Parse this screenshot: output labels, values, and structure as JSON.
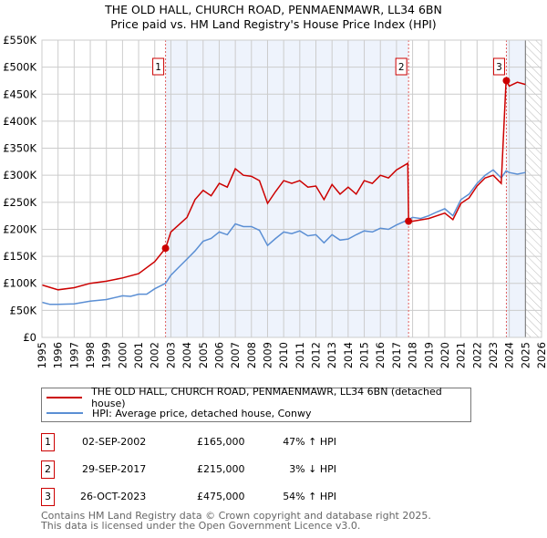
{
  "chart_data": {
    "type": "line",
    "title": "THE OLD HALL, CHURCH ROAD, PENMAENMAWR, LL34 6BN",
    "subtitle": "Price paid vs. HM Land Registry's House Price Index (HPI)",
    "xlim": [
      1995,
      2026
    ],
    "ylim": [
      0,
      550000
    ],
    "x_ticks": [
      "1995",
      "1996",
      "1997",
      "1998",
      "1999",
      "2000",
      "2001",
      "2002",
      "2003",
      "2004",
      "2005",
      "2006",
      "2007",
      "2008",
      "2009",
      "2010",
      "2011",
      "2012",
      "2013",
      "2014",
      "2015",
      "2016",
      "2017",
      "2018",
      "2019",
      "2020",
      "2021",
      "2022",
      "2023",
      "2024",
      "2025",
      "2026"
    ],
    "y_ticks": [
      {
        "v": 0,
        "label": "£0"
      },
      {
        "v": 50000,
        "label": "£50K"
      },
      {
        "v": 100000,
        "label": "£100K"
      },
      {
        "v": 150000,
        "label": "£150K"
      },
      {
        "v": 200000,
        "label": "£200K"
      },
      {
        "v": 250000,
        "label": "£250K"
      },
      {
        "v": 300000,
        "label": "£300K"
      },
      {
        "v": 350000,
        "label": "£350K"
      },
      {
        "v": 400000,
        "label": "£400K"
      },
      {
        "v": 450000,
        "label": "£450K"
      },
      {
        "v": 500000,
        "label": "£500K"
      },
      {
        "v": 550000,
        "label": "£550K"
      }
    ],
    "grid": true,
    "series": [
      {
        "name": "THE OLD HALL, CHURCH ROAD, PENMAENMAWR, LL34 6BN (detached house)",
        "color": "#cc0000",
        "x": [
          1995,
          1996,
          1997,
          1998,
          1999,
          2000,
          2001,
          2002,
          2002.67,
          2003,
          2004,
          2004.5,
          2005,
          2005.5,
          2006,
          2006.5,
          2007,
          2007.5,
          2008,
          2008.5,
          2009,
          2009.5,
          2010,
          2010.5,
          2011,
          2011.5,
          2012,
          2012.5,
          2013,
          2013.5,
          2014,
          2014.5,
          2015,
          2015.5,
          2016,
          2016.5,
          2017,
          2017.7,
          2017.75,
          2018,
          2019,
          2020,
          2020.5,
          2021,
          2021.5,
          2022,
          2022.5,
          2023,
          2023.5,
          2023.8,
          2024,
          2024.5,
          2025
        ],
        "y": [
          97000,
          88000,
          92000,
          100000,
          104000,
          110000,
          118000,
          140000,
          165000,
          195000,
          222000,
          255000,
          272000,
          262000,
          285000,
          278000,
          312000,
          300000,
          298000,
          290000,
          248000,
          270000,
          290000,
          285000,
          290000,
          278000,
          280000,
          255000,
          283000,
          265000,
          278000,
          265000,
          290000,
          285000,
          300000,
          295000,
          310000,
          322000,
          215000,
          215000,
          220000,
          230000,
          218000,
          248000,
          258000,
          280000,
          295000,
          300000,
          285000,
          475000,
          465000,
          472000,
          468000
        ]
      },
      {
        "name": "HPI: Average price, detached house, Conwy",
        "color": "#5b8fd4",
        "x": [
          1995,
          1995.5,
          1996,
          1997,
          1998,
          1999,
          2000,
          2000.5,
          2001,
          2001.5,
          2002,
          2002.67,
          2003,
          2003.5,
          2004,
          2004.5,
          2005,
          2005.5,
          2006,
          2006.5,
          2007,
          2007.5,
          2008,
          2008.5,
          2009,
          2009.5,
          2010,
          2010.5,
          2011,
          2011.5,
          2012,
          2012.5,
          2013,
          2013.5,
          2014,
          2014.5,
          2015,
          2015.5,
          2016,
          2016.5,
          2017,
          2017.75,
          2018,
          2018.5,
          2019,
          2019.5,
          2020,
          2020.5,
          2021,
          2021.5,
          2022,
          2022.5,
          2023,
          2023.5,
          2023.8,
          2024,
          2024.5,
          2025
        ],
        "y": [
          65000,
          61000,
          61000,
          62000,
          67000,
          70000,
          77000,
          76000,
          80000,
          80000,
          90000,
          100000,
          115000,
          130000,
          145000,
          160000,
          178000,
          183000,
          195000,
          190000,
          210000,
          205000,
          205000,
          198000,
          170000,
          183000,
          195000,
          192000,
          197000,
          188000,
          190000,
          175000,
          190000,
          180000,
          182000,
          190000,
          197000,
          195000,
          202000,
          200000,
          208000,
          218000,
          222000,
          220000,
          225000,
          232000,
          238000,
          225000,
          255000,
          265000,
          285000,
          300000,
          310000,
          295000,
          308000,
          305000,
          302000,
          305000
        ]
      }
    ],
    "sales": [
      {
        "n": "1",
        "x": 2002.67,
        "y": 165000
      },
      {
        "n": "2",
        "x": 2017.75,
        "y": 215000
      },
      {
        "n": "3",
        "x": 2023.82,
        "y": 475000
      }
    ],
    "legend": "bottom"
  },
  "title": "THE OLD HALL, CHURCH ROAD, PENMAENMAWR, LL34 6BN",
  "subtitle": "Price paid vs. HM Land Registry's House Price Index (HPI)",
  "legend": {
    "red": "THE OLD HALL, CHURCH ROAD, PENMAENMAWR, LL34 6BN (detached house)",
    "blue": "HPI: Average price, detached house, Conwy"
  },
  "transactions": [
    {
      "n": "1",
      "date": "02-SEP-2002",
      "price": "£165,000",
      "hpi": "47% ↑ HPI"
    },
    {
      "n": "2",
      "date": "29-SEP-2017",
      "price": "£215,000",
      "hpi": "3% ↓ HPI"
    },
    {
      "n": "3",
      "date": "26-OCT-2023",
      "price": "£475,000",
      "hpi": "54% ↑ HPI"
    }
  ],
  "footer": {
    "line1": "Contains HM Land Registry data © Crown copyright and database right 2025.",
    "line2": "This data is licensed under the Open Government Licence v3.0."
  }
}
